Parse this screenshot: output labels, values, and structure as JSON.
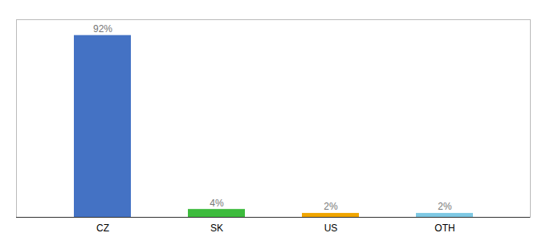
{
  "chart_data": {
    "type": "bar",
    "categories": [
      "CZ",
      "SK",
      "US",
      "OTH"
    ],
    "values": [
      92,
      4,
      2,
      2
    ],
    "value_labels": [
      "92%",
      "4%",
      "2%",
      "2%"
    ],
    "colors": [
      "#4472c4",
      "#3dbb3d",
      "#f0a500",
      "#7ec8e3"
    ],
    "ylim": [
      0,
      100
    ],
    "grid": false,
    "data_labels": true,
    "tick_labels": "x"
  }
}
